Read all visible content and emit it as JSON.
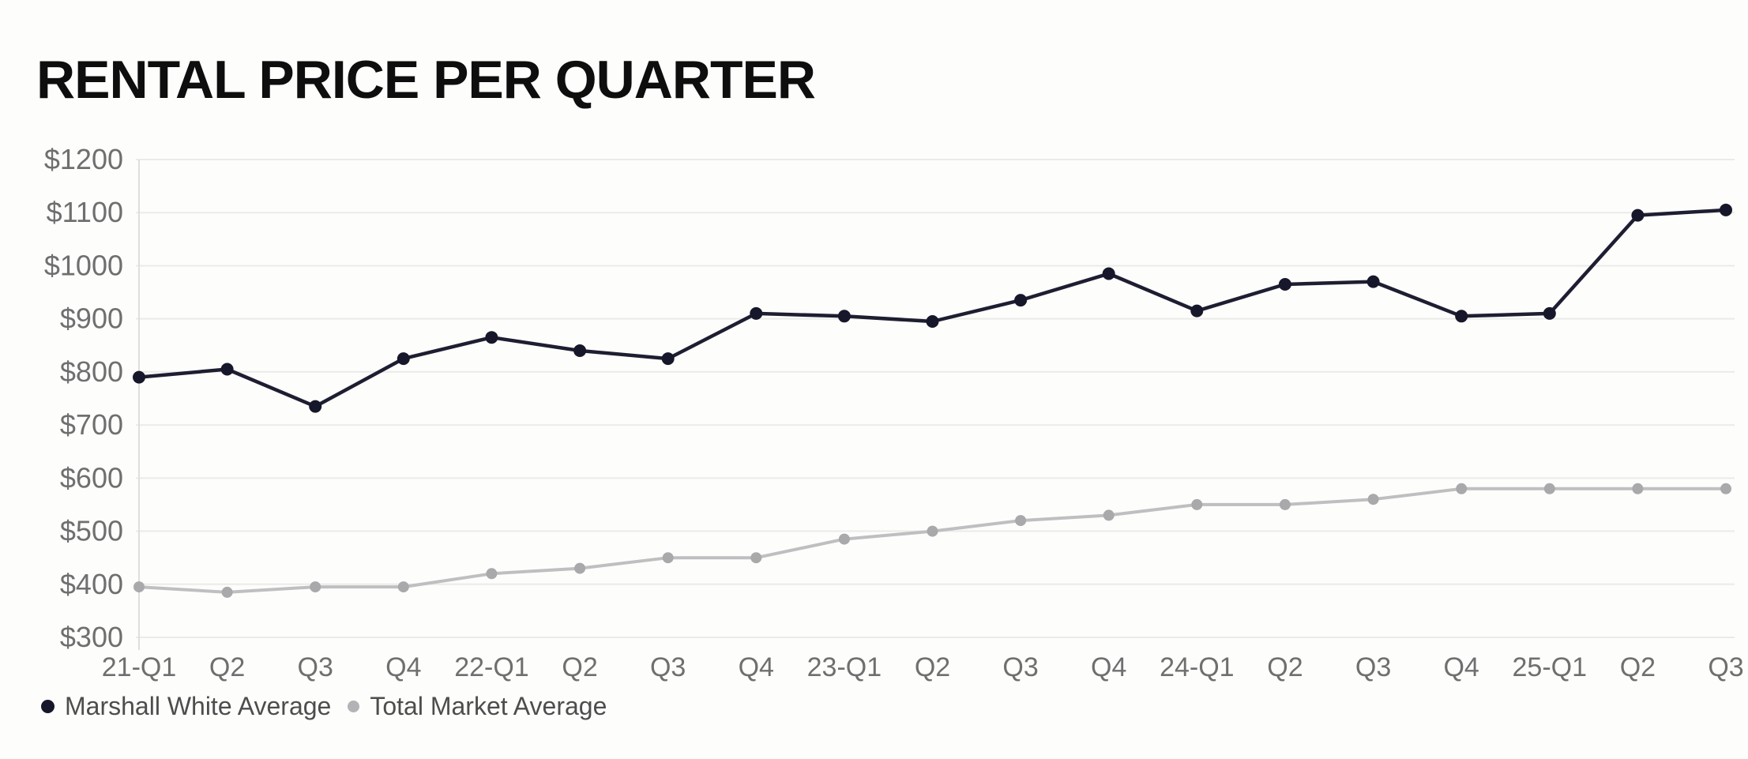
{
  "chart_data": {
    "type": "line",
    "title": "RENTAL PRICE PER QUARTER",
    "categories": [
      "21-Q1",
      "Q2",
      "Q3",
      "Q4",
      "22-Q1",
      "Q2",
      "Q3",
      "Q4",
      "23-Q1",
      "Q2",
      "Q3",
      "Q4",
      "24-Q1",
      "Q2",
      "Q3",
      "Q4",
      "25-Q1",
      "Q2",
      "Q3"
    ],
    "series": [
      {
        "name": "Marshall White Average",
        "color": "#1e1e32",
        "marker_color": "#17172b",
        "values": [
          790,
          805,
          735,
          825,
          865,
          840,
          825,
          910,
          905,
          895,
          935,
          985,
          915,
          965,
          970,
          905,
          910,
          1095,
          1105
        ]
      },
      {
        "name": "Total Market Average",
        "color": "#bfbfc1",
        "marker_color": "#a9a9ab",
        "values": [
          395,
          385,
          395,
          395,
          420,
          430,
          450,
          450,
          485,
          500,
          520,
          530,
          550,
          550,
          560,
          580,
          580,
          580,
          580
        ]
      }
    ],
    "xlabel": "",
    "ylabel": "",
    "ylim": [
      300,
      1200
    ],
    "y_tick_step": 100,
    "y_tick_prefix": "$",
    "grid": true,
    "legend_position": "bottom-left"
  },
  "colors": {
    "background": "#fdfdfc",
    "gridline": "#ebebe9",
    "axis_line": "#dededc",
    "tick_text": "#6f6f6f",
    "legend_text": "#4d4d4d",
    "title_text": "#0e0e0e"
  }
}
